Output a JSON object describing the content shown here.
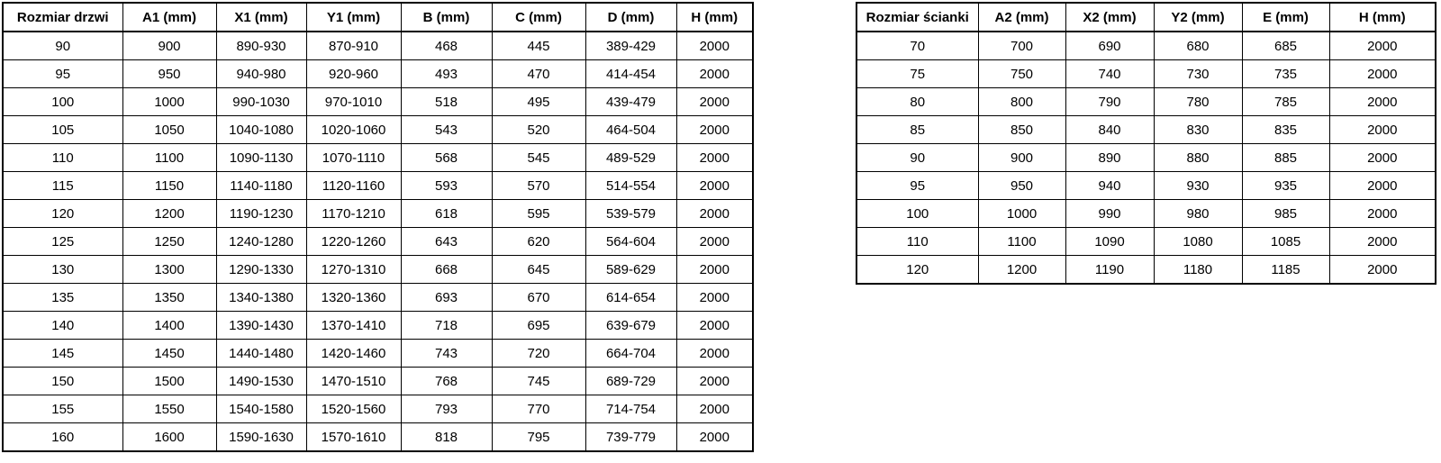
{
  "colors": {
    "background": "#ffffff",
    "border": "#000000",
    "text": "#000000"
  },
  "door_table": {
    "name": "door-size-table",
    "headers": [
      "Rozmiar drzwi",
      "A1 (mm)",
      "X1 (mm)",
      "Y1 (mm)",
      "B (mm)",
      "C (mm)",
      "D (mm)",
      "H (mm)"
    ],
    "rows": [
      [
        "90",
        "900",
        "890-930",
        "870-910",
        "468",
        "445",
        "389-429",
        "2000"
      ],
      [
        "95",
        "950",
        "940-980",
        "920-960",
        "493",
        "470",
        "414-454",
        "2000"
      ],
      [
        "100",
        "1000",
        "990-1030",
        "970-1010",
        "518",
        "495",
        "439-479",
        "2000"
      ],
      [
        "105",
        "1050",
        "1040-1080",
        "1020-1060",
        "543",
        "520",
        "464-504",
        "2000"
      ],
      [
        "110",
        "1100",
        "1090-1130",
        "1070-1110",
        "568",
        "545",
        "489-529",
        "2000"
      ],
      [
        "115",
        "1150",
        "1140-1180",
        "1120-1160",
        "593",
        "570",
        "514-554",
        "2000"
      ],
      [
        "120",
        "1200",
        "1190-1230",
        "1170-1210",
        "618",
        "595",
        "539-579",
        "2000"
      ],
      [
        "125",
        "1250",
        "1240-1280",
        "1220-1260",
        "643",
        "620",
        "564-604",
        "2000"
      ],
      [
        "130",
        "1300",
        "1290-1330",
        "1270-1310",
        "668",
        "645",
        "589-629",
        "2000"
      ],
      [
        "135",
        "1350",
        "1340-1380",
        "1320-1360",
        "693",
        "670",
        "614-654",
        "2000"
      ],
      [
        "140",
        "1400",
        "1390-1430",
        "1370-1410",
        "718",
        "695",
        "639-679",
        "2000"
      ],
      [
        "145",
        "1450",
        "1440-1480",
        "1420-1460",
        "743",
        "720",
        "664-704",
        "2000"
      ],
      [
        "150",
        "1500",
        "1490-1530",
        "1470-1510",
        "768",
        "745",
        "689-729",
        "2000"
      ],
      [
        "155",
        "1550",
        "1540-1580",
        "1520-1560",
        "793",
        "770",
        "714-754",
        "2000"
      ],
      [
        "160",
        "1600",
        "1590-1630",
        "1570-1610",
        "818",
        "795",
        "739-779",
        "2000"
      ]
    ]
  },
  "wall_table": {
    "name": "wall-size-table",
    "headers": [
      "Rozmiar ścianki",
      "A2 (mm)",
      "X2 (mm)",
      "Y2 (mm)",
      "E (mm)",
      "H (mm)"
    ],
    "rows": [
      [
        "70",
        "700",
        "690",
        "680",
        "685",
        "2000"
      ],
      [
        "75",
        "750",
        "740",
        "730",
        "735",
        "2000"
      ],
      [
        "80",
        "800",
        "790",
        "780",
        "785",
        "2000"
      ],
      [
        "85",
        "850",
        "840",
        "830",
        "835",
        "2000"
      ],
      [
        "90",
        "900",
        "890",
        "880",
        "885",
        "2000"
      ],
      [
        "95",
        "950",
        "940",
        "930",
        "935",
        "2000"
      ],
      [
        "100",
        "1000",
        "990",
        "980",
        "985",
        "2000"
      ],
      [
        "110",
        "1100",
        "1090",
        "1080",
        "1085",
        "2000"
      ],
      [
        "120",
        "1200",
        "1190",
        "1180",
        "1185",
        "2000"
      ]
    ]
  }
}
